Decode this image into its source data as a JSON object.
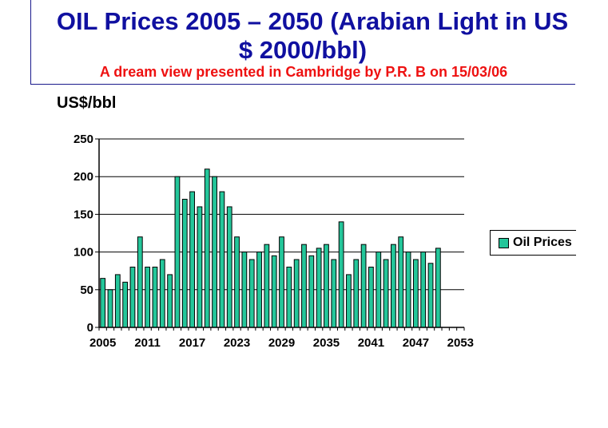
{
  "header": {
    "title_line1": "OIL Prices 2005 – 2050 (Arabian Light in US",
    "title_line2": "$ 2000/bbl)",
    "subtitle": "A dream view presented in Cambridge by P.R. B on 15/03/06"
  },
  "colors": {
    "title": "#1010a0",
    "subtitle": "#ee1111",
    "bar": "#24c69a",
    "bar_border": "#000000"
  },
  "chart_data": {
    "type": "bar",
    "ylabel": "US$/bbl",
    "ylim": [
      0,
      250
    ],
    "yticks": [
      0,
      50,
      100,
      150,
      200,
      250
    ],
    "xlim": [
      2005,
      2054
    ],
    "xticks": [
      2005,
      2011,
      2017,
      2023,
      2029,
      2035,
      2041,
      2047,
      2053
    ],
    "grid": true,
    "legend_position": "right",
    "categories": [
      2005,
      2006,
      2007,
      2008,
      2009,
      2010,
      2011,
      2012,
      2013,
      2014,
      2015,
      2016,
      2017,
      2018,
      2019,
      2020,
      2021,
      2022,
      2023,
      2024,
      2025,
      2026,
      2027,
      2028,
      2029,
      2030,
      2031,
      2032,
      2033,
      2034,
      2035,
      2036,
      2037,
      2038,
      2039,
      2040,
      2041,
      2042,
      2043,
      2044,
      2045,
      2046,
      2047,
      2048,
      2049,
      2050,
      2051,
      2052,
      2053
    ],
    "series": [
      {
        "name": "Oil Prices",
        "values": [
          65,
          50,
          70,
          60,
          80,
          120,
          80,
          80,
          90,
          70,
          200,
          170,
          180,
          160,
          210,
          200,
          180,
          160,
          120,
          100,
          90,
          100,
          110,
          95,
          120,
          80,
          90,
          110,
          95,
          105,
          110,
          90,
          140,
          70,
          90,
          110,
          80,
          100,
          90,
          110,
          120,
          100,
          90,
          100,
          85,
          105,
          null,
          null,
          null
        ]
      }
    ]
  }
}
